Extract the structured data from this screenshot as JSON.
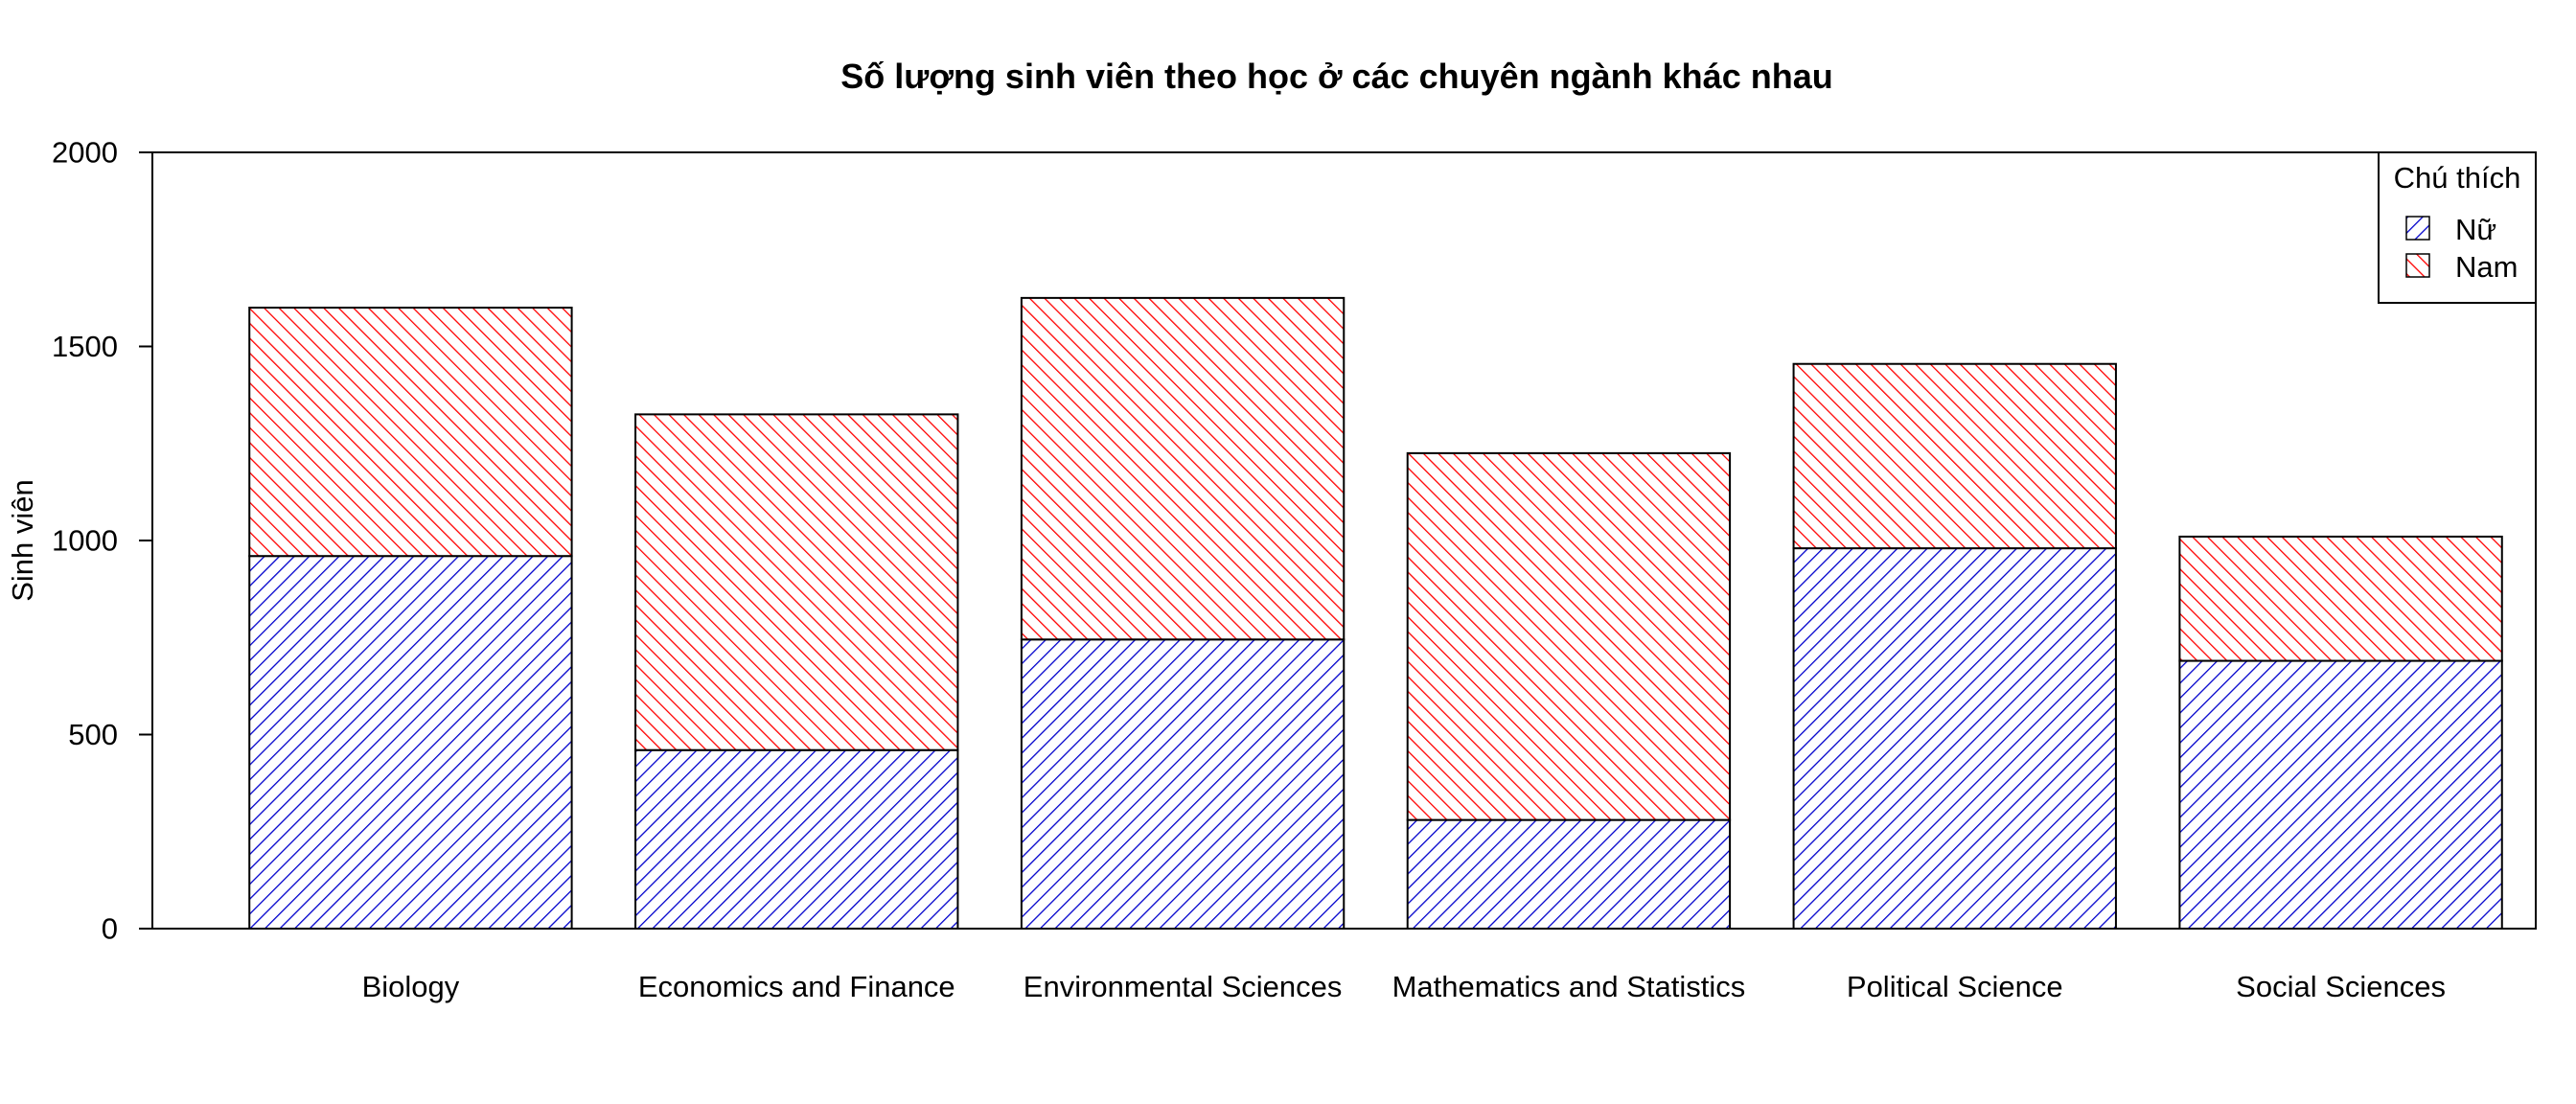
{
  "chart_data": {
    "type": "bar",
    "stacked": true,
    "title": "Số lượng sinh viên theo học ở các chuyên ngành khác nhau",
    "xlabel": "",
    "ylabel": "Sinh viên",
    "ylim": [
      0,
      2000
    ],
    "yticks": [
      "0",
      "500",
      "1000",
      "1500",
      "2000"
    ],
    "categories": [
      "Biology",
      "Economics and Finance",
      "Environmental Sciences",
      "Mathematics and Statistics",
      "Political Science",
      "Social Sciences"
    ],
    "series": [
      {
        "name": "Nữ",
        "values": [
          960,
          460,
          745,
          280,
          980,
          690
        ],
        "color": "#0000cc",
        "pattern": "forward-diagonal"
      },
      {
        "name": "Nam",
        "values": [
          640,
          865,
          880,
          945,
          475,
          320
        ],
        "color": "#ff0000",
        "pattern": "back-diagonal"
      }
    ],
    "legend": {
      "title": "Chú thích",
      "position": "top-right"
    },
    "grid": false
  }
}
